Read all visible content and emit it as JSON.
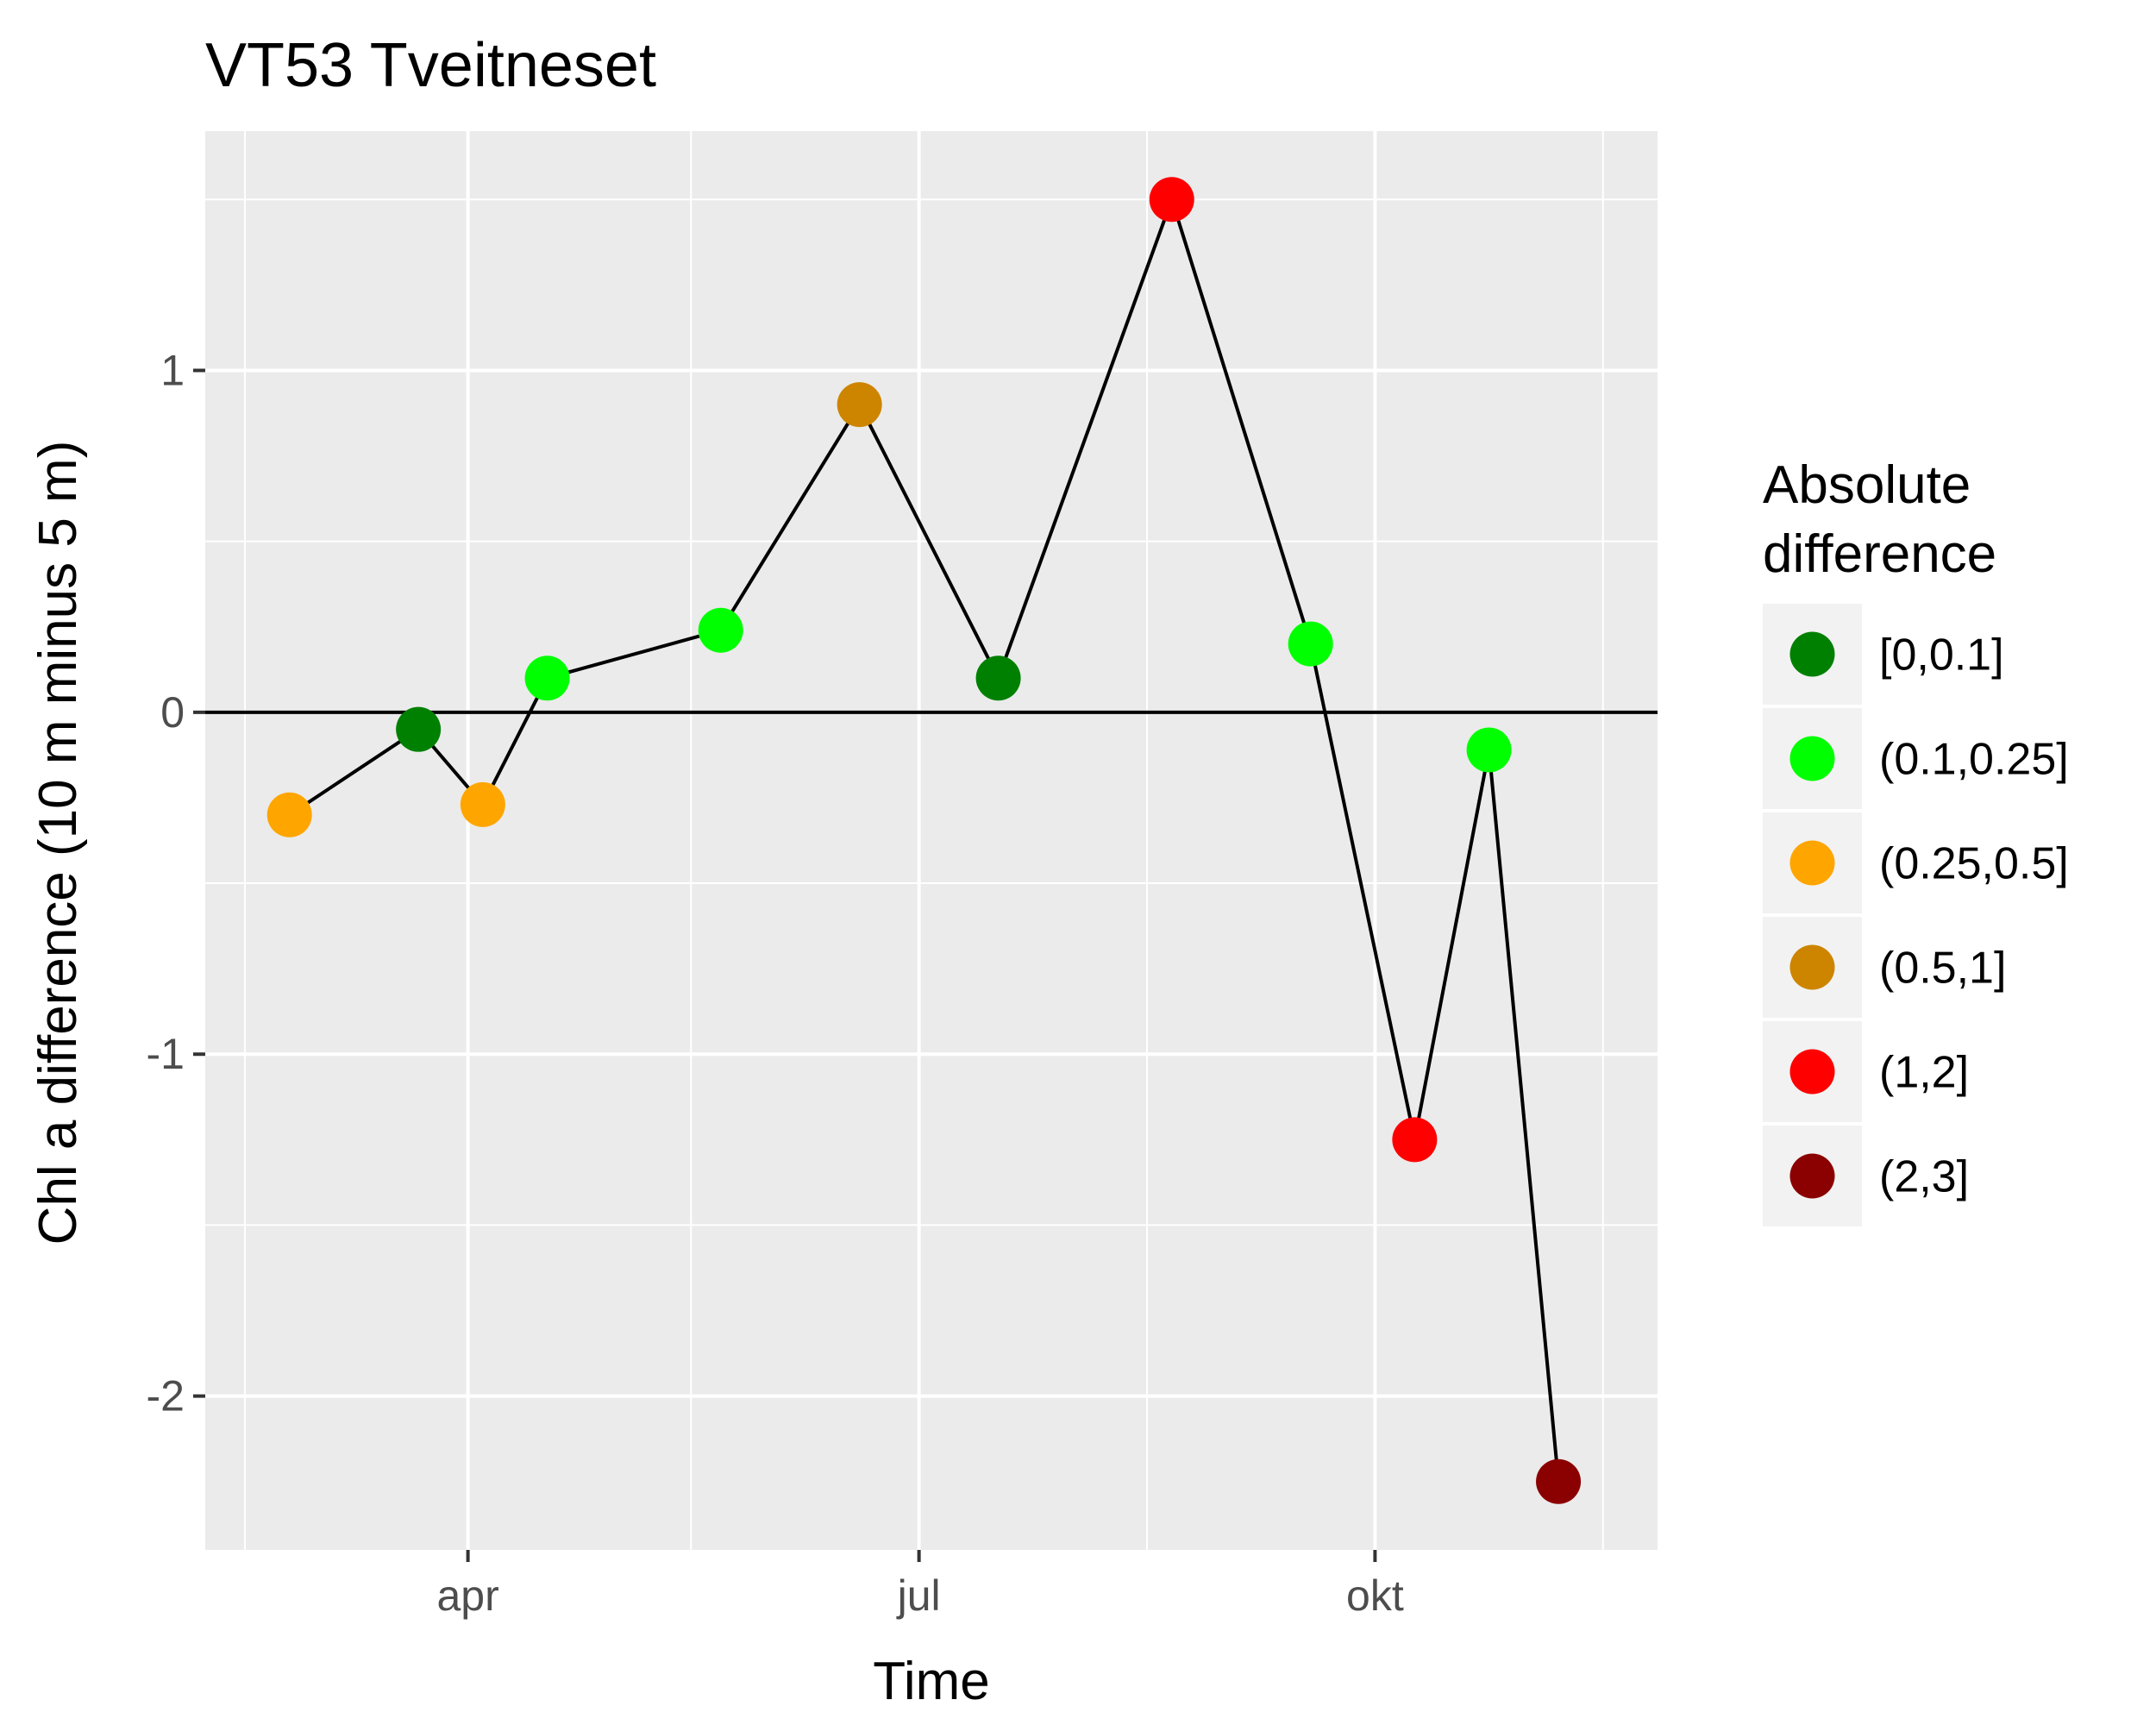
{
  "chart_data": {
    "type": "line",
    "title": "VT53 Tveitneset",
    "xlabel": "Time",
    "ylabel": "Chl a difference (10 m minus 5 m)",
    "x_ticks": [
      {
        "date": "2017-04-01",
        "label": "apr"
      },
      {
        "date": "2017-07-01",
        "label": "jul"
      },
      {
        "date": "2017-10-01",
        "label": "okt"
      }
    ],
    "x_minor_ticks": [
      "2017-02-15",
      "2017-05-16",
      "2017-08-16",
      "2017-11-16"
    ],
    "xlim": [
      "2017-02-07",
      "2017-11-27"
    ],
    "y_ticks": [
      -2,
      -1,
      0,
      1
    ],
    "ylim": [
      -2.45,
      1.7
    ],
    "hline": 0,
    "grid": true,
    "legend": {
      "title_lines": [
        "Absolute",
        "difference"
      ],
      "position": "right",
      "entries": [
        {
          "label": "[0,0.1]",
          "color": "#008000"
        },
        {
          "label": "(0.1,0.25]",
          "color": "#00ff00"
        },
        {
          "label": "(0.25,0.5]",
          "color": "#ffa500"
        },
        {
          "label": "(0.5,1]",
          "color": "#cd8500"
        },
        {
          "label": "(1,2]",
          "color": "#ff0000"
        },
        {
          "label": "(2,3]",
          "color": "#8b0000"
        }
      ]
    },
    "points": [
      {
        "date": "2017-02-24",
        "value": -0.3,
        "category": "(0.25,0.5]"
      },
      {
        "date": "2017-03-22",
        "value": -0.05,
        "category": "[0,0.1]"
      },
      {
        "date": "2017-04-04",
        "value": -0.27,
        "category": "(0.25,0.5]"
      },
      {
        "date": "2017-04-17",
        "value": 0.1,
        "category": "(0.1,0.25]"
      },
      {
        "date": "2017-05-22",
        "value": 0.24,
        "category": "(0.1,0.25]"
      },
      {
        "date": "2017-06-19",
        "value": 0.9,
        "category": "(0.5,1]"
      },
      {
        "date": "2017-07-17",
        "value": 0.1,
        "category": "[0,0.1]"
      },
      {
        "date": "2017-08-21",
        "value": 1.5,
        "category": "(1,2]"
      },
      {
        "date": "2017-09-18",
        "value": 0.2,
        "category": "(0.1,0.25]"
      },
      {
        "date": "2017-10-09",
        "value": -1.25,
        "category": "(1,2]"
      },
      {
        "date": "2017-10-24",
        "value": -0.11,
        "category": "(0.1,0.25]"
      },
      {
        "date": "2017-11-07",
        "value": -2.25,
        "category": "(2,3]"
      }
    ],
    "colors": {
      "panel_background": "#ebebeb",
      "grid": "#ffffff",
      "line": "#000000",
      "tick_text": "#4d4d4d",
      "legend_key_background": "#f2f2f2"
    }
  }
}
